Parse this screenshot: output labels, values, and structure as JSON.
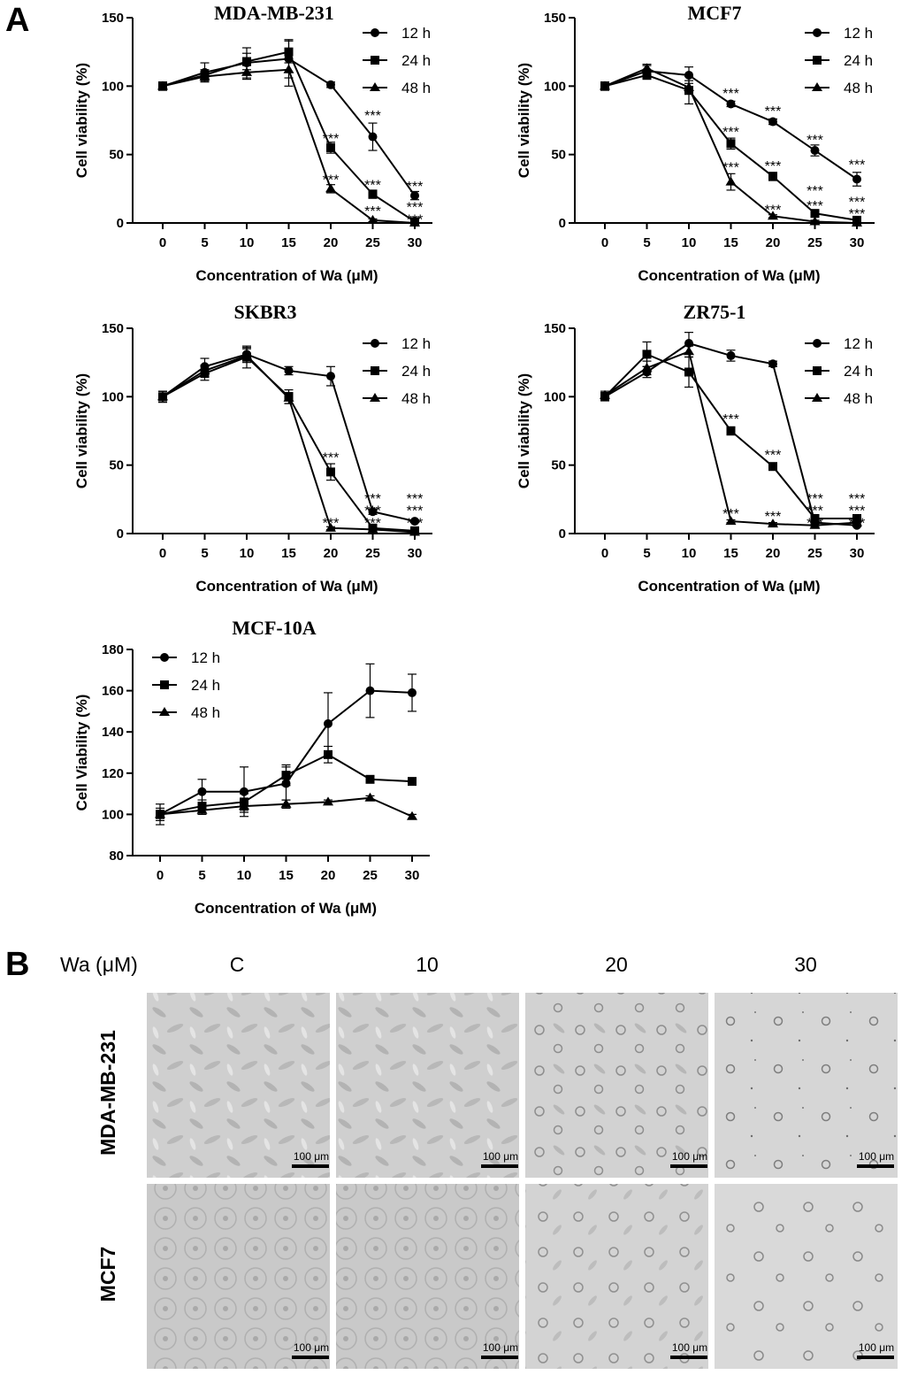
{
  "panel_labels": [
    "A",
    "B"
  ],
  "chart_data": [
    {
      "type": "line",
      "title": "MDA-MB-231",
      "xlabel": "Concentration of Wa (μM)",
      "ylabel": "Cell viability (%)",
      "x": [
        0,
        5,
        10,
        15,
        20,
        25,
        30
      ],
      "ylim": [
        0,
        150
      ],
      "yticks": [
        0,
        50,
        100,
        150
      ],
      "legend_position": "top-right",
      "series": [
        {
          "name": "12 h",
          "marker": "circle",
          "values": [
            100,
            110,
            117,
            120,
            101,
            63,
            20
          ],
          "errors": [
            3,
            7,
            11,
            14,
            2,
            10,
            3
          ]
        },
        {
          "name": "24 h",
          "marker": "square",
          "values": [
            100,
            108,
            118,
            125,
            55,
            21,
            1
          ],
          "errors": [
            3,
            4,
            6,
            8,
            4,
            3,
            1
          ]
        },
        {
          "name": "48 h",
          "marker": "triangle",
          "values": [
            100,
            107,
            110,
            112,
            25,
            2,
            0
          ],
          "errors": [
            3,
            3,
            5,
            12,
            3,
            1,
            1
          ]
        }
      ],
      "annotations": [
        {
          "x": 25,
          "y": 79,
          "text": "***"
        },
        {
          "x": 30,
          "y": 27,
          "text": "***"
        },
        {
          "x": 20,
          "y": 62,
          "text": "***"
        },
        {
          "x": 25,
          "y": 28,
          "text": "***"
        },
        {
          "x": 30,
          "y": 12,
          "text": "***"
        },
        {
          "x": 20,
          "y": 32,
          "text": "***"
        },
        {
          "x": 25,
          "y": 9,
          "text": "***"
        },
        {
          "x": 30,
          "y": 3,
          "text": "***"
        }
      ]
    },
    {
      "type": "line",
      "title": "MCF7",
      "xlabel": "Concentration of Wa (μM)",
      "ylabel": "Cell viability (%)",
      "x": [
        0,
        5,
        10,
        15,
        20,
        25,
        30
      ],
      "ylim": [
        0,
        150
      ],
      "yticks": [
        0,
        50,
        100,
        150
      ],
      "legend_position": "top-right",
      "series": [
        {
          "name": "12 h",
          "marker": "circle",
          "values": [
            100,
            111,
            108,
            87,
            74,
            53,
            32
          ],
          "errors": [
            3,
            4,
            6,
            2,
            2,
            4,
            5
          ]
        },
        {
          "name": "24 h",
          "marker": "square",
          "values": [
            100,
            108,
            97,
            58,
            34,
            7,
            2
          ],
          "errors": [
            3,
            3,
            10,
            4,
            3,
            2,
            1
          ]
        },
        {
          "name": "48 h",
          "marker": "triangle",
          "values": [
            100,
            113,
            99,
            30,
            5,
            1,
            0
          ],
          "errors": [
            3,
            3,
            5,
            6,
            1,
            1,
            1
          ]
        }
      ],
      "annotations": [
        {
          "x": 15,
          "y": 95,
          "text": "***"
        },
        {
          "x": 20,
          "y": 82,
          "text": "***"
        },
        {
          "x": 25,
          "y": 61,
          "text": "***"
        },
        {
          "x": 30,
          "y": 43,
          "text": "***"
        },
        {
          "x": 15,
          "y": 67,
          "text": "***"
        },
        {
          "x": 20,
          "y": 42,
          "text": "***"
        },
        {
          "x": 25,
          "y": 24,
          "text": "***"
        },
        {
          "x": 30,
          "y": 16,
          "text": "***"
        },
        {
          "x": 15,
          "y": 41,
          "text": "***"
        },
        {
          "x": 20,
          "y": 10,
          "text": "***"
        },
        {
          "x": 25,
          "y": 13,
          "text": "***"
        },
        {
          "x": 30,
          "y": 7,
          "text": "***"
        }
      ]
    },
    {
      "type": "line",
      "title": "SKBR3",
      "xlabel": "Concentration of Wa (μM)",
      "ylabel": "Cell viability (%)",
      "x": [
        0,
        5,
        10,
        15,
        20,
        25,
        30
      ],
      "ylim": [
        0,
        150
      ],
      "yticks": [
        0,
        50,
        100,
        150
      ],
      "legend_position": "top-right",
      "series": [
        {
          "name": "12 h",
          "marker": "circle",
          "values": [
            100,
            122,
            131,
            119,
            115,
            16,
            9
          ],
          "errors": [
            4,
            6,
            5,
            3,
            7,
            2,
            1
          ]
        },
        {
          "name": "24 h",
          "marker": "square",
          "values": [
            100,
            117,
            129,
            100,
            45,
            4,
            2
          ],
          "errors": [
            4,
            5,
            8,
            5,
            6,
            1,
            1
          ]
        },
        {
          "name": "48 h",
          "marker": "triangle",
          "values": [
            100,
            119,
            130,
            99,
            4,
            3,
            1
          ],
          "errors": [
            4,
            4,
            5,
            4,
            1,
            1,
            1
          ]
        }
      ],
      "annotations": [
        {
          "x": 25,
          "y": 26,
          "text": "***"
        },
        {
          "x": 30,
          "y": 26,
          "text": "***"
        },
        {
          "x": 20,
          "y": 56,
          "text": "***"
        },
        {
          "x": 25,
          "y": 17,
          "text": "***"
        },
        {
          "x": 30,
          "y": 17,
          "text": "***"
        },
        {
          "x": 20,
          "y": 8,
          "text": "***"
        },
        {
          "x": 25,
          "y": 8,
          "text": "***"
        },
        {
          "x": 30,
          "y": 8,
          "text": "***"
        }
      ]
    },
    {
      "type": "line",
      "title": "ZR75-1",
      "xlabel": "Concentration of Wa (μM)",
      "ylabel": "Cell viability (%)",
      "x": [
        0,
        5,
        10,
        15,
        20,
        25,
        30
      ],
      "ylim": [
        0,
        150
      ],
      "yticks": [
        0,
        50,
        100,
        150
      ],
      "legend_position": "top-right",
      "series": [
        {
          "name": "12 h",
          "marker": "circle",
          "values": [
            100,
            118,
            139,
            130,
            124,
            8,
            6
          ],
          "errors": [
            3,
            4,
            8,
            4,
            2,
            1,
            1
          ]
        },
        {
          "name": "24 h",
          "marker": "square",
          "values": [
            100,
            131,
            118,
            75,
            49,
            11,
            11
          ],
          "errors": [
            3,
            9,
            11,
            3,
            2,
            1,
            1
          ]
        },
        {
          "name": "48 h",
          "marker": "triangle",
          "values": [
            101,
            121,
            133,
            9,
            7,
            6,
            8
          ],
          "errors": [
            3,
            5,
            4,
            1,
            1,
            1,
            1
          ]
        }
      ],
      "annotations": [
        {
          "x": 25,
          "y": 26,
          "text": "***"
        },
        {
          "x": 30,
          "y": 26,
          "text": "***"
        },
        {
          "x": 15,
          "y": 84,
          "text": "***"
        },
        {
          "x": 20,
          "y": 58,
          "text": "***"
        },
        {
          "x": 25,
          "y": 17,
          "text": "***"
        },
        {
          "x": 30,
          "y": 17,
          "text": "***"
        },
        {
          "x": 15,
          "y": 15,
          "text": "***"
        },
        {
          "x": 20,
          "y": 13,
          "text": "***"
        },
        {
          "x": 25,
          "y": 8,
          "text": "***"
        },
        {
          "x": 30,
          "y": 8,
          "text": "***"
        }
      ]
    },
    {
      "type": "line",
      "title": "MCF-10A",
      "xlabel": "Concentration of Wa (μM)",
      "ylabel": "Cell Viability (%)",
      "x": [
        0,
        5,
        10,
        15,
        20,
        25,
        30
      ],
      "ylim": [
        80,
        180
      ],
      "yticks": [
        80,
        100,
        120,
        140,
        160,
        180
      ],
      "legend_position": "top-left",
      "series": [
        {
          "name": "12 h",
          "marker": "circle",
          "values": [
            100,
            111,
            111,
            115,
            144,
            160,
            159
          ],
          "errors": [
            5,
            6,
            12,
            8,
            15,
            13,
            9
          ]
        },
        {
          "name": "24 h",
          "marker": "square",
          "values": [
            100,
            104,
            106,
            119,
            129,
            117,
            116
          ],
          "errors": [
            3,
            3,
            4,
            5,
            4,
            1,
            1
          ]
        },
        {
          "name": "48 h",
          "marker": "triangle",
          "values": [
            100,
            102,
            104,
            105,
            106,
            108,
            99
          ],
          "errors": [
            2,
            2,
            3,
            2,
            1,
            1,
            1
          ]
        }
      ],
      "annotations": []
    }
  ],
  "micrographs": {
    "header_label": "Wa (μM)",
    "columns": [
      "C",
      "10",
      "20",
      "30"
    ],
    "rows": [
      "MDA-MB-231",
      "MCF7"
    ],
    "scale_bar_label": "100 μm"
  }
}
